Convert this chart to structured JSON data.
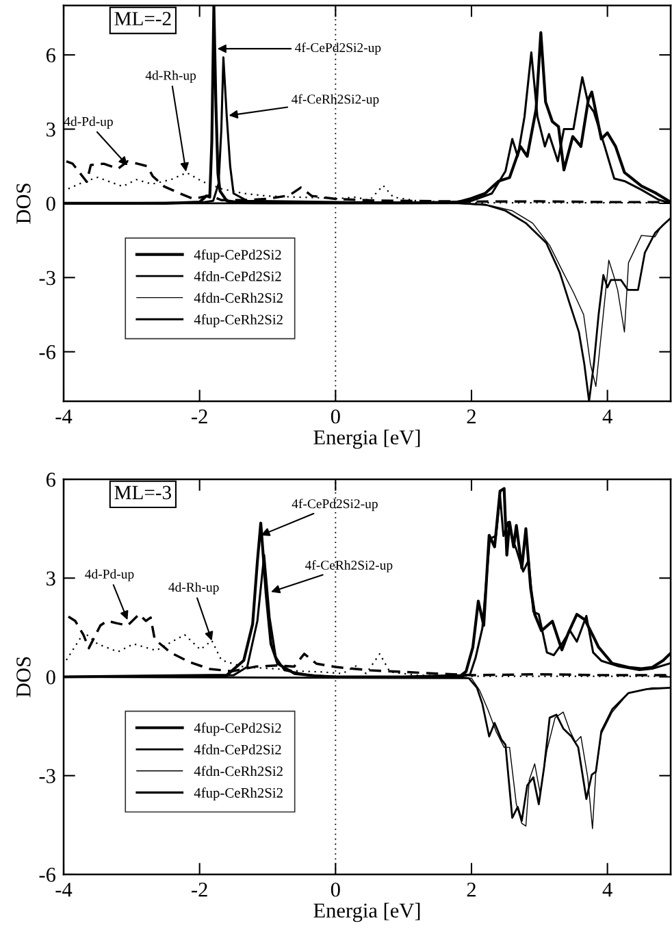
{
  "chart_data": [
    {
      "type": "line",
      "xlabel": "Energia [eV]",
      "ylabel": "DOS",
      "xlim": [
        -4,
        4.93
      ],
      "ylim": [
        -8,
        8
      ],
      "xticks": [
        -4,
        -2,
        0,
        2,
        4
      ],
      "yticks": [
        -6,
        -3,
        0,
        3,
        6
      ],
      "legend": "bottom left",
      "ref_lines": [
        {
          "axis": "x",
          "value": 0,
          "color": "#000000",
          "line_style": "dotted"
        }
      ],
      "series": [
        {
          "name": "4fup-CePd2Si2",
          "color": "#000000",
          "line_style": "solid",
          "x": [
            -4,
            -3,
            -2.5,
            -2,
            -1.9,
            -1.85,
            -1.82,
            -1.79,
            -1.76,
            -1.73,
            -1.7,
            -1.6,
            -1.4,
            -1,
            0,
            1,
            1.5,
            1.8,
            2.0,
            2.2,
            2.4,
            2.56,
            2.72,
            2.82,
            2.95,
            3.02,
            3.09,
            3.19,
            3.28,
            3.36,
            3.49,
            3.61,
            3.72,
            3.77,
            3.8,
            3.91,
            4.0,
            4.12,
            4.25,
            4.5,
            4.7,
            4.93
          ],
          "values": [
            0,
            0,
            0,
            0.05,
            0.3,
            0.25,
            2.5,
            8,
            4,
            1.2,
            0.5,
            0.1,
            0.03,
            0.02,
            0.02,
            0.02,
            0.03,
            0.05,
            0.2,
            0.4,
            0.9,
            1.04,
            2.3,
            1.9,
            3.8,
            6.9,
            4.1,
            3.3,
            3.1,
            1.35,
            2.7,
            2.3,
            4.2,
            4.5,
            4.1,
            2.6,
            2.85,
            2.3,
            1.25,
            0.7,
            0.43,
            0.05
          ]
        },
        {
          "name": "4fdn-CePd2Si2",
          "color": "#000000",
          "line_style": "solid",
          "x": [
            -4,
            1.8,
            2.2,
            2.5,
            2.8,
            3.1,
            3.3,
            3.45,
            3.58,
            3.66,
            3.73,
            3.8,
            3.87,
            3.94,
            4.0,
            4.05,
            4.2,
            4.3,
            4.45,
            4.55,
            4.7,
            4.85,
            4.93
          ],
          "values": [
            0,
            0,
            -0.05,
            -0.3,
            -0.8,
            -1.6,
            -2.8,
            -4.1,
            -5.2,
            -6.5,
            -8,
            -6.5,
            -4.5,
            -2.9,
            -3.4,
            -3.1,
            -3.1,
            -3.5,
            -3.5,
            -2.0,
            -1.2,
            -0.8,
            -0.6
          ]
        },
        {
          "name": "4fdn-CeRh2Si2",
          "color": "#000000",
          "line_style": "solid",
          "x": [
            -4,
            1.8,
            2.3,
            2.6,
            2.9,
            3.15,
            3.35,
            3.5,
            3.65,
            3.75,
            3.83,
            3.92,
            4.02,
            4.1,
            4.15,
            4.25,
            4.31,
            4.5,
            4.7,
            4.8,
            4.93
          ],
          "values": [
            0,
            0,
            -0.1,
            -0.3,
            -0.8,
            -1.7,
            -2.8,
            -3.6,
            -4.5,
            -6.5,
            -7.4,
            -5.0,
            -2.3,
            -3.0,
            -3.5,
            -5.2,
            -2.4,
            -1.3,
            -1.35,
            -0.9,
            -0.6
          ]
        },
        {
          "name": "4fup-CeRh2Si2",
          "color": "#000000",
          "line_style": "solid",
          "x": [
            -4,
            -2,
            -1.8,
            -1.72,
            -1.68,
            -1.65,
            -1.6,
            -1.55,
            -1.5,
            -1.3,
            0,
            1,
            1.8,
            2.0,
            2.3,
            2.5,
            2.6,
            2.68,
            2.78,
            2.88,
            2.97,
            3.08,
            3.14,
            3.27,
            3.36,
            3.5,
            3.63,
            3.72,
            3.8,
            3.96,
            4.1,
            4.25,
            4.5,
            4.75,
            4.93
          ],
          "values": [
            0,
            0.02,
            0.1,
            0.8,
            3,
            5.9,
            3.5,
            1.5,
            0.4,
            0.1,
            0.05,
            0.03,
            0.05,
            0.1,
            0.4,
            1.3,
            2.6,
            1.9,
            3.5,
            6.1,
            3.5,
            2.3,
            2.8,
            1.7,
            3.0,
            3.0,
            5.1,
            4.0,
            3.7,
            2.3,
            1.0,
            0.9,
            0.55,
            0.15,
            0
          ]
        },
        {
          "color": "#000000",
          "line_style": "dashed",
          "x": [
            -3.96,
            -3.87,
            -3.66,
            -3.6,
            -3.41,
            -3.2,
            -3.06,
            -2.91,
            -2.77,
            -2.69,
            -2.52,
            -2.29,
            -2.09,
            -1.85,
            -1.68,
            -1.35,
            -1.02,
            -0.68,
            -0.51,
            -0.35,
            0,
            0.5,
            1,
            2,
            3,
            4,
            4.93
          ],
          "values": [
            1.7,
            1.61,
            0.87,
            1.55,
            1.6,
            1.4,
            1.7,
            1.6,
            1.5,
            1.1,
            0.68,
            0.4,
            0.18,
            0.32,
            0.13,
            0.13,
            0.18,
            0.32,
            0.64,
            0.3,
            0.18,
            0.12,
            0.1,
            0.07,
            0.08,
            0.05,
            0.05
          ]
        },
        {
          "color": "#000000",
          "line_style": "dotted",
          "x": [
            -3.93,
            -3.7,
            -3.5,
            -3.13,
            -2.93,
            -2.7,
            -2.42,
            -2.19,
            -1.95,
            -1.68,
            -1.35,
            -1.02,
            -0.68,
            -0.18,
            0,
            0.3,
            0.5,
            0.7,
            0.85,
            1.2,
            1.8,
            2.5,
            4.93
          ],
          "values": [
            0.59,
            0.87,
            1.05,
            0.68,
            0.96,
            0.78,
            0.96,
            1.24,
            0.87,
            0.59,
            0.4,
            0.3,
            0.26,
            0.22,
            0.18,
            0.25,
            0.12,
            0.72,
            0.25,
            0.1,
            0.03,
            0.02,
            0.02
          ]
        }
      ],
      "annotations": [
        "ML=-2",
        {
          "text": "4f-CePd2Si2-up",
          "x": -1.74,
          "y": 6.25
        },
        {
          "text": "4f-CeRh2Si2-up",
          "x": -1.57,
          "y": 3.55
        },
        {
          "text": "4d-Rh-up",
          "x": -2.2,
          "y": 1.28
        },
        {
          "text": "4d-Pd-up",
          "x": -3.06,
          "y": 1.53
        }
      ]
    },
    {
      "type": "line",
      "xlabel": "Energia [eV]",
      "ylabel": "DOS",
      "xlim": [
        -4,
        4.93
      ],
      "ylim": [
        -6,
        6
      ],
      "xticks": [
        -4,
        -2,
        0,
        2,
        4
      ],
      "yticks": [
        -6,
        -3,
        0,
        3,
        6
      ],
      "legend": "bottom left",
      "ref_lines": [
        {
          "axis": "x",
          "value": 0,
          "color": "#000000",
          "line_style": "dotted"
        }
      ],
      "series": [
        {
          "name": "4fup-CePd2Si2",
          "color": "#000000",
          "line_style": "solid",
          "x": [
            -4,
            -1.6,
            -1.35,
            -1.22,
            -1.15,
            -1.1,
            -1.02,
            -0.95,
            -0.85,
            -0.6,
            -0.3,
            0,
            1,
            1.84,
            1.92,
            2.02,
            2.1,
            2.18,
            2.26,
            2.34,
            2.42,
            2.48,
            2.52,
            2.56,
            2.62,
            2.66,
            2.74,
            2.8,
            2.87,
            2.93,
            3.03,
            3.19,
            3.33,
            3.43,
            3.55,
            3.67,
            3.79,
            3.87,
            4.07,
            4.31,
            4.5,
            4.66,
            4.82,
            4.92
          ],
          "values": [
            0,
            0.05,
            0.5,
            1.6,
            3.5,
            4.67,
            2.5,
            1.0,
            0.4,
            0.1,
            0.03,
            0,
            0,
            0.04,
            0.16,
            0.9,
            2.3,
            1.56,
            4.3,
            3.95,
            5.64,
            5.72,
            3.7,
            4.7,
            3.95,
            4.6,
            3.3,
            4.5,
            2.7,
            1.9,
            1.4,
            1.69,
            0.82,
            1.36,
            1.9,
            1.73,
            1.24,
            0.9,
            0.41,
            0.29,
            0.25,
            0.29,
            0.5,
            0.7
          ]
        },
        {
          "name": "4fdn-CePd2Si2",
          "color": "#000000",
          "line_style": "solid",
          "x": [
            -4,
            1.96,
            2.08,
            2.16,
            2.26,
            2.34,
            2.44,
            2.5,
            2.6,
            2.68,
            2.74,
            2.82,
            2.91,
            2.99,
            3.07,
            3.15,
            3.25,
            3.35,
            3.47,
            3.57,
            3.69,
            3.77,
            3.83,
            3.91,
            4.07,
            4.31,
            4.58,
            4.92
          ],
          "values": [
            0,
            -0.04,
            -0.33,
            -0.82,
            -1.81,
            -1.4,
            -1.9,
            -2.06,
            -4.28,
            -3.95,
            -4.37,
            -3.3,
            -3.05,
            -3.87,
            -2.72,
            -1.24,
            -1.15,
            -1.57,
            -1.81,
            -2.14,
            -3.71,
            -2.97,
            -2.88,
            -1.65,
            -0.99,
            -0.49,
            -0.37,
            -0.33
          ]
        },
        {
          "name": "4fdn-CeRh2Si2",
          "color": "#000000",
          "line_style": "solid",
          "x": [
            -4,
            2.0,
            2.12,
            2.24,
            2.36,
            2.48,
            2.56,
            2.66,
            2.74,
            2.8,
            2.85,
            2.93,
            3.01,
            3.11,
            3.23,
            3.35,
            3.45,
            3.53,
            3.61,
            3.71,
            3.78,
            3.83,
            3.91,
            4.07,
            4.31,
            4.66,
            4.92
          ],
          "values": [
            0,
            -0.04,
            -0.41,
            -0.99,
            -1.65,
            -2.14,
            -2.14,
            -3.87,
            -4.45,
            -4.53,
            -3.13,
            -2.64,
            -3.54,
            -2.22,
            -1.24,
            -1.07,
            -1.65,
            -1.98,
            -1.81,
            -3.05,
            -4.61,
            -2.88,
            -1.73,
            -1.07,
            -0.49,
            -0.33,
            -0.33
          ]
        },
        {
          "name": "4fup-CeRh2Si2",
          "color": "#000000",
          "line_style": "solid",
          "x": [
            -4,
            -1.5,
            -1.3,
            -1.15,
            -1.05,
            -0.97,
            -0.88,
            -0.75,
            -0.4,
            0,
            1,
            1.88,
            1.98,
            2.06,
            2.16,
            2.27,
            2.36,
            2.42,
            2.47,
            2.54,
            2.6,
            2.66,
            2.76,
            2.84,
            2.91,
            2.99,
            3.11,
            3.21,
            3.35,
            3.45,
            3.55,
            3.69,
            3.79,
            3.91,
            4.15,
            4.47,
            4.66,
            4.92
          ],
          "values": [
            0,
            0.05,
            0.3,
            1.7,
            3.7,
            1.8,
            0.6,
            0.2,
            0.05,
            0,
            0,
            0.02,
            0.08,
            0.58,
            1.48,
            4.2,
            4.28,
            5.5,
            4.28,
            4.7,
            4.2,
            3.87,
            3.2,
            3.54,
            1.98,
            1.9,
            0.74,
            0.66,
            1.07,
            1.4,
            1.07,
            1.85,
            0.74,
            0.49,
            0.33,
            0.21,
            0.25,
            0.41
          ]
        },
        {
          "color": "#000000",
          "line_style": "dashed",
          "x": [
            -3.93,
            -3.83,
            -3.71,
            -3.63,
            -3.46,
            -3.36,
            -3.22,
            -3.06,
            -2.89,
            -2.79,
            -2.72,
            -2.66,
            -2.42,
            -2.15,
            -1.85,
            -1.52,
            -1.18,
            -0.85,
            -0.61,
            -0.46,
            -0.28,
            0,
            0.5,
            1,
            1.5,
            2,
            3,
            4,
            4.93
          ],
          "values": [
            1.83,
            1.7,
            1.28,
            0.87,
            1.56,
            1.7,
            1.63,
            1.56,
            1.9,
            1.7,
            1.8,
            1.14,
            0.73,
            0.45,
            0.24,
            0.17,
            0.31,
            0.35,
            0.31,
            0.7,
            0.4,
            0.3,
            0.2,
            0.15,
            0.1,
            0.05,
            0.08,
            0.05,
            0.05
          ]
        },
        {
          "color": "#000000",
          "line_style": "dotted",
          "x": [
            -3.96,
            -3.7,
            -3.5,
            -3.2,
            -2.97,
            -2.64,
            -2.22,
            -1.99,
            -1.82,
            -1.68,
            -1.35,
            -0.85,
            -0.51,
            -0.2,
            0.1,
            0.3,
            0.45,
            0.65,
            0.8,
            1.2,
            2,
            4.93
          ],
          "values": [
            0.51,
            1.35,
            1.0,
            0.76,
            1.0,
            0.8,
            1.28,
            0.83,
            1.1,
            0.51,
            0.3,
            0.24,
            0.17,
            0.15,
            0.1,
            0.33,
            0.1,
            0.7,
            0.15,
            0.05,
            0.02,
            0.02
          ]
        }
      ],
      "annotations": [
        "ML=-3",
        {
          "text": "4f-CePd2Si2-up",
          "x": -1.1,
          "y": 4.3
        },
        {
          "text": "4f-CeRh2Si2-up",
          "x": -0.95,
          "y": 2.58
        },
        {
          "text": "4d-Pd-up",
          "x": -3.06,
          "y": 1.73
        },
        {
          "text": "4d-Rh-up",
          "x": -1.82,
          "y": 1.1
        }
      ]
    }
  ]
}
